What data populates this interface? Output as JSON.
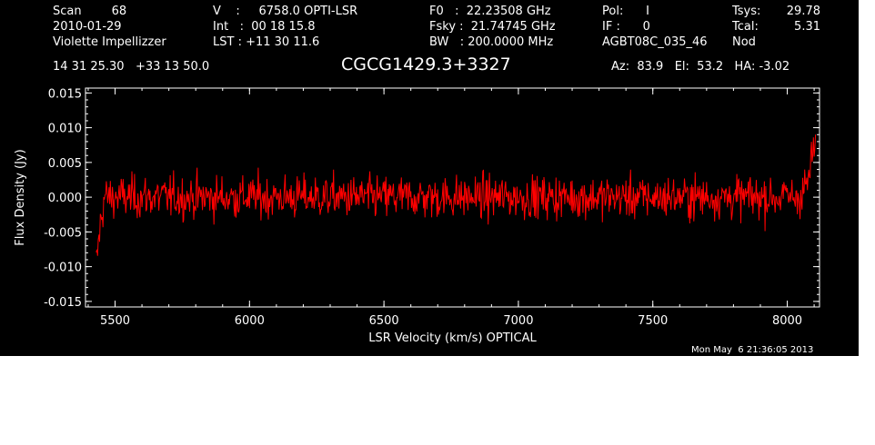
{
  "header": {
    "col1": [
      "Scan        68",
      "2010-01-29",
      "Violette Impellizzer"
    ],
    "col2": [
      "V    :     6758.0 OPTI-LSR",
      "Int   :  00 18 15.8",
      "LST : +11 30 11.6"
    ],
    "col3": [
      "F0   :  22.23508 GHz",
      "Fsky :  21.74745 GHz",
      "BW   : 200.0000 MHz"
    ],
    "col4": [
      "Pol:      I",
      "IF :      0",
      "AGBT08C_035_46"
    ],
    "col5": [
      "Tsys:",
      "Tcal:",
      "Nod"
    ],
    "col6": [
      "29.78",
      "5.31",
      ""
    ],
    "coords": "14 31 25.30   +33 13 50.0",
    "source": "CGCG1429.3+3327",
    "azelha": "Az:  83.9   El:  53.2   HA: -3.02",
    "timestamp": "Mon May  6 21:36:05 2013"
  },
  "chart_data": {
    "type": "line",
    "xlabel": "LSR Velocity (km/s) OPTICAL",
    "ylabel": "Flux Density (Jy)",
    "xlim": [
      5390,
      8120
    ],
    "ylim": [
      -0.0158,
      0.0157
    ],
    "xticks": [
      5500,
      6000,
      6500,
      7000,
      7500,
      8000
    ],
    "yticks": [
      -0.015,
      -0.01,
      -0.005,
      0.0,
      0.005,
      0.01,
      0.015
    ],
    "ytick_labels": [
      "-0.015",
      "-0.010",
      "-0.005",
      "0.000",
      "0.005",
      "0.010",
      "0.015"
    ],
    "series": [
      {
        "color": "#ff0000",
        "x_start": 5430,
        "x_end": 8105,
        "x_step": 2.5,
        "noise_rms": 0.0028,
        "envelope": [
          [
            5430,
            -0.01
          ],
          [
            5445,
            -0.004
          ],
          [
            5460,
            0.0
          ],
          [
            8040,
            0.0
          ],
          [
            8075,
            0.002
          ],
          [
            8095,
            0.006
          ],
          [
            8105,
            0.008
          ]
        ]
      }
    ]
  }
}
